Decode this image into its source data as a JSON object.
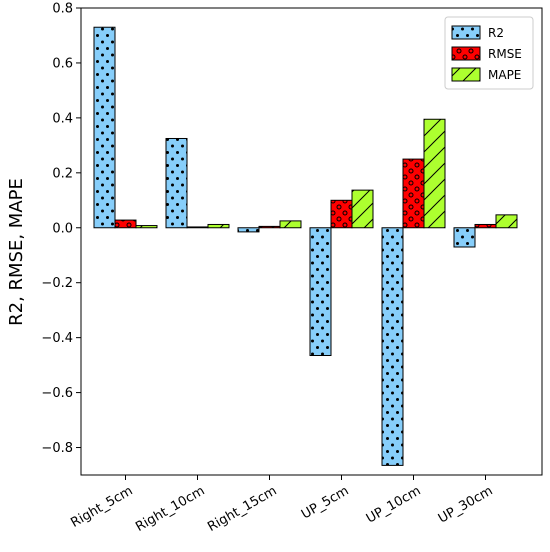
{
  "chart_data": {
    "type": "bar",
    "title": "",
    "xlabel": "",
    "ylabel": "R2, RMSE, MAPE",
    "ylim": [
      -0.9,
      0.8
    ],
    "yticks": [
      -0.8,
      -0.6,
      -0.4,
      -0.2,
      0.0,
      0.2,
      0.4,
      0.6,
      0.8
    ],
    "ytick_labels": [
      "−0.8",
      "−0.6",
      "−0.4",
      "−0.2",
      "0.0",
      "0.2",
      "0.4",
      "0.6",
      "0.8"
    ],
    "categories": [
      "Right_5cm",
      "Right_10cm",
      "Right_15cm",
      "UP_5cm",
      "UP_10cm",
      "UP_30cm"
    ],
    "series": [
      {
        "name": "R2",
        "values": [
          0.73,
          0.325,
          -0.015,
          -0.465,
          -0.865,
          -0.07
        ],
        "color": "#87cefa",
        "hatch": "dots"
      },
      {
        "name": "RMSE",
        "values": [
          0.028,
          0.003,
          0.005,
          0.1,
          0.25,
          0.012
        ],
        "color": "#ff0000",
        "hatch": "circles"
      },
      {
        "name": "MAPE",
        "values": [
          0.008,
          0.012,
          0.025,
          0.137,
          0.395,
          0.047
        ],
        "color": "#adff2f",
        "hatch": "diagonal"
      }
    ],
    "grid": false,
    "legend_position": "top-right"
  }
}
